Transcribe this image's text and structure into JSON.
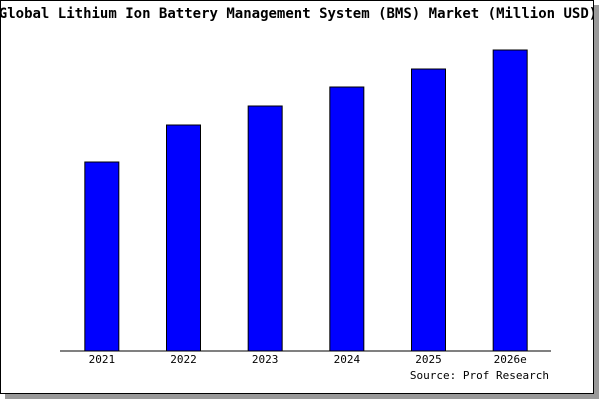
{
  "chart_data": {
    "type": "bar",
    "title": "Global Lithium Ion Battery Management System (BMS) Market (Million USD)",
    "categories": [
      "2021",
      "2022",
      "2023",
      "2024",
      "2025",
      "2026e"
    ],
    "values": [
      189,
      226,
      245,
      264,
      282,
      301
    ],
    "color": "#0000ff",
    "source": "Source: Prof Research"
  }
}
